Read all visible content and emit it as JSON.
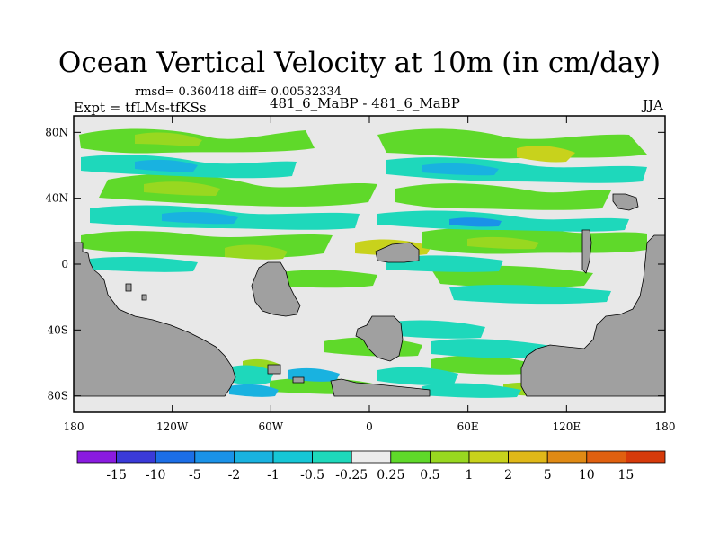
{
  "title": "Ocean Vertical Velocity at 10m (in cm/day)",
  "stats": "rmsd= 0.360418 diff= 0.00532334",
  "expt": "Expt = tfLMs-tfKSs",
  "center_label": "481_6_MaBP - 481_6_MaBP",
  "season": "JJA",
  "axes": {
    "lon_ticks": [
      "180",
      "120W",
      "60W",
      "0",
      "60E",
      "120E",
      "180"
    ],
    "lon_values": [
      -180,
      -120,
      -60,
      0,
      60,
      120,
      180
    ],
    "lat_ticks": [
      "80N",
      "40N",
      "0",
      "40S",
      "80S"
    ],
    "lat_values": [
      80,
      40,
      0,
      -40,
      -80
    ],
    "lon_range": [
      -180,
      180
    ],
    "lat_range": [
      -90,
      90
    ]
  },
  "colorbar": {
    "labels": [
      "-15",
      "-10",
      "-5",
      "-2",
      "-1",
      "-0.5",
      "-0.25",
      "0.25",
      "0.5",
      "1",
      "2",
      "5",
      "10",
      "15"
    ],
    "colors": [
      "#8a1be0",
      "#3a3ad8",
      "#1c6ee6",
      "#1a92e8",
      "#19b2e0",
      "#16c6d6",
      "#1ed8bb",
      "#ececec",
      "#5fd92a",
      "#98d820",
      "#c8d21c",
      "#e0b818",
      "#e08a14",
      "#e0600f",
      "#d63a0a"
    ]
  },
  "palette": {
    "land": "#a0a0a0",
    "ocean_neutral": "#e8e8e8"
  }
}
